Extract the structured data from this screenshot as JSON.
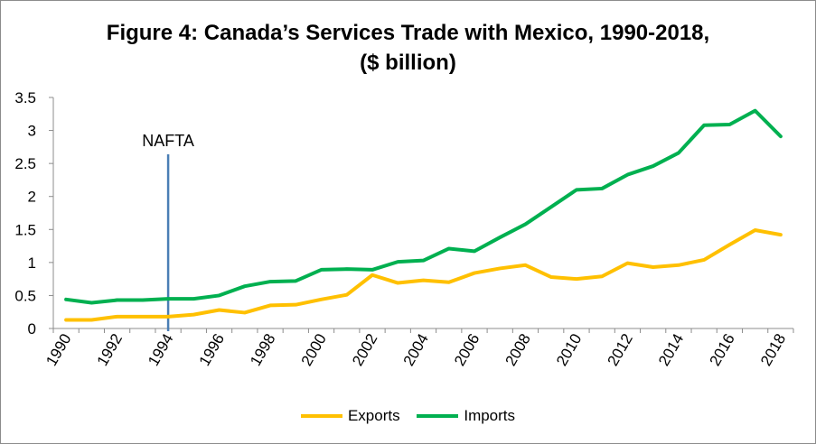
{
  "chart_data": {
    "type": "line",
    "title_line1": "Figure 4: Canada’s Services Trade with Mexico, 1990-2018,",
    "title_line2": "($ billion)",
    "x": [
      1990,
      1991,
      1992,
      1993,
      1994,
      1995,
      1996,
      1997,
      1998,
      1999,
      2000,
      2001,
      2002,
      2003,
      2004,
      2005,
      2006,
      2007,
      2008,
      2009,
      2010,
      2011,
      2012,
      2013,
      2014,
      2015,
      2016,
      2017,
      2018
    ],
    "x_tick_labels": [
      "1990",
      "1992",
      "1994",
      "1996",
      "1998",
      "2000",
      "2002",
      "2004",
      "2006",
      "2008",
      "2010",
      "2012",
      "2014",
      "2016",
      "2018"
    ],
    "y_tick_labels": [
      "0",
      "0.5",
      "1",
      "1.5",
      "2",
      "2.5",
      "3",
      "3.5"
    ],
    "ylim": [
      0,
      3.5
    ],
    "series": [
      {
        "name": "Exports",
        "color": "#ffc000",
        "values": [
          0.13,
          0.13,
          0.18,
          0.18,
          0.18,
          0.21,
          0.28,
          0.24,
          0.35,
          0.36,
          0.44,
          0.51,
          0.81,
          0.69,
          0.73,
          0.7,
          0.84,
          0.91,
          0.96,
          0.78,
          0.75,
          0.79,
          0.99,
          0.93,
          0.96,
          1.04,
          1.27,
          1.49,
          1.42
        ]
      },
      {
        "name": "Imports",
        "color": "#00b050",
        "values": [
          0.44,
          0.39,
          0.43,
          0.43,
          0.45,
          0.45,
          0.5,
          0.64,
          0.71,
          0.72,
          0.89,
          0.9,
          0.89,
          1.01,
          1.03,
          1.21,
          1.17,
          1.38,
          1.58,
          1.84,
          2.1,
          2.12,
          2.33,
          2.46,
          2.66,
          3.08,
          3.09,
          3.3,
          2.91
        ]
      }
    ],
    "annotation": {
      "label": "NAFTA",
      "x": 1994,
      "color": "#4a7eb5"
    },
    "legend_position": "bottom",
    "grid": false
  }
}
